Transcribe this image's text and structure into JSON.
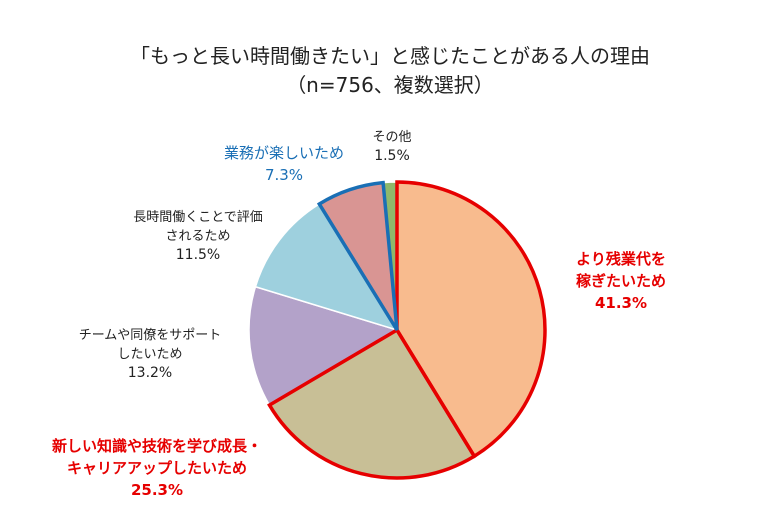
{
  "chart_data": {
    "type": "pie",
    "title_line1": "「もっと長い時間働きたい」と感じたことがある人の理由",
    "title_line2": "（n=756、複数選択）",
    "slices": [
      {
        "label": [
          "より残業代を",
          "稼ぎたいため"
        ],
        "value": 41.3,
        "value_text": "41.3%",
        "fill": "#f8bb8e",
        "highlight": "#e60000",
        "label_color": "#e60000"
      },
      {
        "label": [
          "新しい知識や技術を学び成長・",
          "キャリアアップしたいため"
        ],
        "value": 25.3,
        "value_text": "25.3%",
        "fill": "#c8bf96",
        "highlight": "#e60000",
        "label_color": "#e60000"
      },
      {
        "label": [
          "チームや同僚をサポート",
          "したいため"
        ],
        "value": 13.2,
        "value_text": "13.2%",
        "fill": "#b3a2c9",
        "highlight": "",
        "label_color": "#222222"
      },
      {
        "label": [
          "長時間働くことで評価",
          "されるため"
        ],
        "value": 11.5,
        "value_text": "11.5%",
        "fill": "#9ed0de",
        "highlight": "",
        "label_color": "#222222"
      },
      {
        "label": [
          "業務が楽しいため"
        ],
        "value": 7.3,
        "value_text": "7.3%",
        "fill": "#d99593",
        "highlight": "#1a6fb5",
        "label_color": "#1a6fb5"
      },
      {
        "label": [
          "その他"
        ],
        "value": 1.5,
        "value_text": "1.5%",
        "fill": "#8fb86b",
        "highlight": "",
        "label_color": "#222222"
      }
    ]
  }
}
